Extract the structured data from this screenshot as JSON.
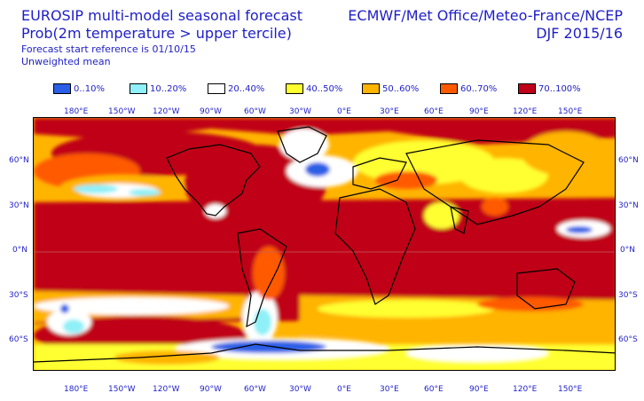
{
  "header": {
    "title_line1": "EUROSIP multi-model seasonal forecast",
    "title_line2": "Prob(2m temperature > upper tercile)",
    "start_ref": "Forecast start reference is 01/10/15",
    "mean_type": "Unweighted mean",
    "centres": "ECMWF/Met Office/Meteo-France/NCEP",
    "season": "DJF 2015/16"
  },
  "legend": [
    {
      "label": "0..10%",
      "color": "#2a5ee6"
    },
    {
      "label": "10..20%",
      "color": "#8ff0f8"
    },
    {
      "label": "20..40%",
      "color": "#ffffff"
    },
    {
      "label": "40..50%",
      "color": "#ffff30"
    },
    {
      "label": "50..60%",
      "color": "#ffb400"
    },
    {
      "label": "60..70%",
      "color": "#ff5a00"
    },
    {
      "label": "70..100%",
      "color": "#c00018"
    }
  ],
  "lon_labels": [
    "180°E",
    "150°W",
    "120°W",
    "90°W",
    "60°W",
    "30°W",
    "0°E",
    "30°E",
    "60°E",
    "90°E",
    "120°E",
    "150°E"
  ],
  "lat_labels_left": [
    "60°N",
    "30°N",
    "0°N",
    "30°S",
    "60°S"
  ],
  "lat_labels_right": [
    "60°N",
    "30°N",
    "0°N",
    "30°S",
    "60°S"
  ]
}
